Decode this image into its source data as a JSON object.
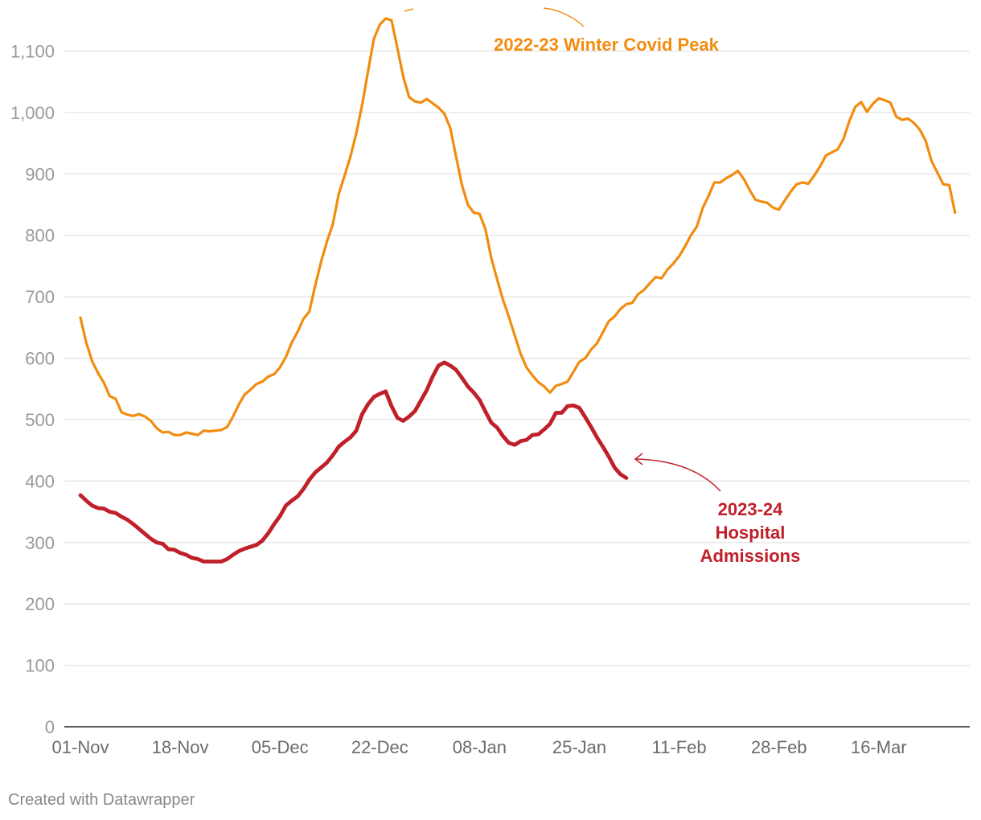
{
  "chart_data": {
    "type": "line",
    "title": "",
    "xlabel": "",
    "ylabel": "",
    "ylim": [
      0,
      1100
    ],
    "yticks": [
      0,
      100,
      200,
      300,
      400,
      500,
      600,
      700,
      800,
      900,
      1000,
      1100
    ],
    "ytick_labels": [
      "0",
      "100",
      "200",
      "300",
      "400",
      "500",
      "600",
      "700",
      "800",
      "900",
      "1,000",
      "1,100"
    ],
    "xlim_days": [
      0,
      150
    ],
    "xticks": [
      {
        "day": 0,
        "label": "01-Nov"
      },
      {
        "day": 17,
        "label": "18-Nov"
      },
      {
        "day": 34,
        "label": "05-Dec"
      },
      {
        "day": 51,
        "label": "22-Dec"
      },
      {
        "day": 68,
        "label": "08-Jan"
      },
      {
        "day": 85,
        "label": "25-Jan"
      },
      {
        "day": 102,
        "label": "11-Feb"
      },
      {
        "day": 119,
        "label": "28-Feb"
      },
      {
        "day": 136,
        "label": "16-Mar"
      }
    ],
    "grid": true,
    "series": [
      {
        "name": "2022-23 Winter Covid Peak",
        "color": "#f28c0f",
        "x_days": [
          0,
          1,
          2,
          3,
          4,
          5,
          6,
          7,
          8,
          9,
          10,
          11,
          12,
          13,
          14,
          15,
          16,
          17,
          18,
          19,
          20,
          21,
          22,
          23,
          24,
          25,
          26,
          27,
          28,
          29,
          30,
          31,
          32,
          33,
          34,
          35,
          36,
          37,
          38,
          39,
          40,
          41,
          42,
          43,
          44,
          45,
          46,
          47,
          48,
          49,
          50,
          51,
          52,
          53,
          54,
          55,
          56,
          57,
          58,
          59,
          60,
          61,
          62,
          63,
          64,
          65,
          66,
          67,
          68,
          69,
          70,
          71,
          72,
          73,
          74,
          75,
          76,
          77,
          78,
          79,
          80,
          81,
          82,
          83,
          84,
          85,
          86,
          87,
          88,
          89,
          90,
          91,
          92,
          93,
          94,
          95,
          96,
          97,
          98,
          99,
          100,
          101,
          102,
          103,
          104,
          105,
          106,
          107,
          108,
          109,
          110,
          111,
          112,
          113,
          114,
          115,
          116,
          117,
          118,
          119,
          120,
          121,
          122,
          123,
          124,
          125,
          126,
          127,
          128,
          129,
          130,
          131,
          132,
          133,
          134,
          135,
          136,
          137,
          138,
          139,
          140,
          141,
          142,
          143,
          144,
          145,
          146,
          147,
          148,
          149
        ],
        "values": [
          666,
          625,
          595,
          576,
          560,
          538,
          534,
          512,
          508,
          506,
          509,
          505,
          498,
          486,
          479,
          480,
          475,
          475,
          479,
          477,
          475,
          482,
          481,
          482,
          483,
          488,
          505,
          525,
          541,
          549,
          558,
          562,
          570,
          574,
          585,
          602,
          625,
          643,
          664,
          676,
          718,
          757,
          790,
          818,
          867,
          897,
          928,
          966,
          1013,
          1067,
          1120,
          1143,
          1153,
          1150,
          1105,
          1058,
          1025,
          1018,
          1016,
          1022,
          1015,
          1008,
          998,
          975,
          928,
          882,
          850,
          837,
          835,
          810,
          763,
          728,
          695,
          667,
          637,
          607,
          585,
          572,
          561,
          554,
          544,
          555,
          558,
          562,
          578,
          594,
          600,
          614,
          624,
          642,
          660,
          668,
          680,
          688,
          690,
          704,
          711,
          722,
          732,
          730,
          744,
          754,
          766,
          782,
          800,
          814,
          844,
          864,
          886,
          886,
          893,
          898,
          905,
          892,
          874,
          858,
          855,
          853,
          845,
          842,
          857,
          871,
          883,
          886,
          884,
          897,
          912,
          930,
          935,
          940,
          957,
          986,
          1009,
          1017,
          1001,
          1014,
          1023,
          1020,
          1016,
          993,
          988,
          990,
          983,
          972,
          954,
          921,
          902,
          883,
          882,
          837
        ]
      },
      {
        "name": "2023-24 Hospital Admissions",
        "color": "#c0202a",
        "x_days": [
          0,
          1,
          2,
          3,
          4,
          5,
          6,
          7,
          8,
          9,
          10,
          11,
          12,
          13,
          14,
          15,
          16,
          17,
          18,
          19,
          20,
          21,
          22,
          23,
          24,
          25,
          26,
          27,
          28,
          29,
          30,
          31,
          32,
          33,
          34,
          35,
          36,
          37,
          38,
          39,
          40,
          41,
          42,
          43,
          44,
          45,
          46,
          47,
          48,
          49,
          50,
          51,
          52,
          53,
          54,
          55,
          56,
          57,
          58,
          59,
          60,
          61,
          62,
          63,
          64,
          65,
          66,
          67,
          68,
          69,
          70,
          71,
          72,
          73,
          74,
          75,
          76,
          77,
          78,
          79,
          80,
          81,
          82,
          83,
          84,
          85,
          86,
          87,
          88,
          89,
          90,
          91,
          92,
          93
        ],
        "values": [
          377,
          368,
          360,
          356,
          355,
          350,
          348,
          342,
          337,
          330,
          322,
          314,
          306,
          300,
          298,
          289,
          288,
          283,
          280,
          275,
          273,
          269,
          269,
          269,
          269,
          273,
          280,
          286,
          290,
          293,
          296,
          303,
          315,
          330,
          343,
          360,
          368,
          375,
          387,
          402,
          414,
          422,
          430,
          442,
          456,
          464,
          471,
          482,
          509,
          525,
          537,
          542,
          546,
          522,
          503,
          498,
          505,
          514,
          531,
          548,
          570,
          588,
          593,
          588,
          581,
          568,
          554,
          544,
          532,
          513,
          495,
          487,
          473,
          462,
          459,
          465,
          467,
          475,
          476,
          484,
          493,
          511,
          511,
          522,
          523,
          519,
          504,
          488,
          471,
          456,
          440,
          422,
          411,
          405
        ]
      }
    ],
    "annotations": [
      {
        "text": "2022-23 Winter Covid Peak",
        "color": "#f28c0f",
        "points_to": {
          "day": 53,
          "value": 1153
        }
      },
      {
        "lines": [
          "2023-24",
          "Hospital",
          "Admissions"
        ],
        "color": "#c0202a",
        "points_to": {
          "day": 94,
          "value": 436
        }
      }
    ]
  },
  "footer": {
    "credit": "Created with Datawrapper"
  }
}
